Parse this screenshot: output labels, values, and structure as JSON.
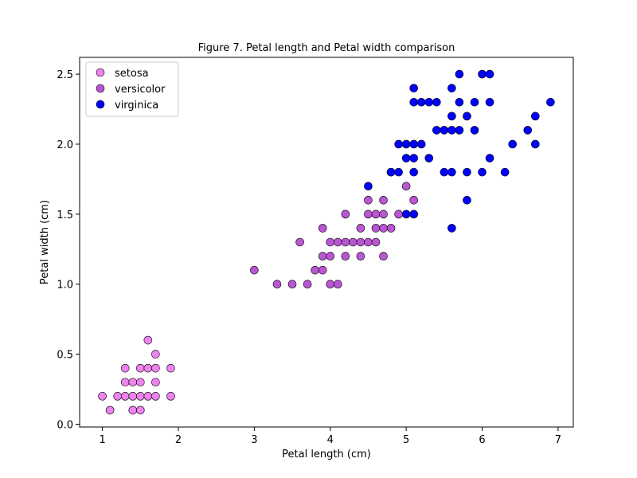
{
  "chart_data": {
    "type": "scatter",
    "title": "Figure 7. Petal length and Petal width comparison",
    "xlabel": "Petal length (cm)",
    "ylabel": "Petal width (cm)",
    "xlim": [
      0.7,
      7.2
    ],
    "ylim": [
      -0.02,
      2.62
    ],
    "xticks": [
      {
        "value": 1,
        "label": "1"
      },
      {
        "value": 2,
        "label": "2"
      },
      {
        "value": 3,
        "label": "3"
      },
      {
        "value": 4,
        "label": "4"
      },
      {
        "value": 5,
        "label": "5"
      },
      {
        "value": 6,
        "label": "6"
      },
      {
        "value": 7,
        "label": "7"
      }
    ],
    "yticks": [
      {
        "value": 0.0,
        "label": "0.0"
      },
      {
        "value": 0.5,
        "label": "0.5"
      },
      {
        "value": 1.0,
        "label": "1.0"
      },
      {
        "value": 1.5,
        "label": "1.5"
      },
      {
        "value": 2.0,
        "label": "2.0"
      },
      {
        "value": 2.5,
        "label": "2.5"
      }
    ],
    "grid": false,
    "legend_position": "top-left",
    "series": [
      {
        "name": "setosa",
        "color": "#ee82ee",
        "points": [
          [
            1.0,
            0.2
          ],
          [
            1.1,
            0.1
          ],
          [
            1.2,
            0.2
          ],
          [
            1.3,
            0.2
          ],
          [
            1.3,
            0.3
          ],
          [
            1.3,
            0.4
          ],
          [
            1.4,
            0.1
          ],
          [
            1.4,
            0.2
          ],
          [
            1.4,
            0.3
          ],
          [
            1.5,
            0.1
          ],
          [
            1.5,
            0.2
          ],
          [
            1.5,
            0.3
          ],
          [
            1.5,
            0.4
          ],
          [
            1.6,
            0.2
          ],
          [
            1.6,
            0.4
          ],
          [
            1.6,
            0.6
          ],
          [
            1.7,
            0.2
          ],
          [
            1.7,
            0.3
          ],
          [
            1.7,
            0.4
          ],
          [
            1.7,
            0.5
          ],
          [
            1.9,
            0.2
          ],
          [
            1.9,
            0.4
          ]
        ]
      },
      {
        "name": "versicolor",
        "color": "#ba55d3",
        "points": [
          [
            3.0,
            1.1
          ],
          [
            3.3,
            1.0
          ],
          [
            3.5,
            1.0
          ],
          [
            3.6,
            1.3
          ],
          [
            3.7,
            1.0
          ],
          [
            3.8,
            1.1
          ],
          [
            3.9,
            1.1
          ],
          [
            3.9,
            1.2
          ],
          [
            3.9,
            1.4
          ],
          [
            4.0,
            1.0
          ],
          [
            4.0,
            1.2
          ],
          [
            4.0,
            1.3
          ],
          [
            4.1,
            1.0
          ],
          [
            4.1,
            1.3
          ],
          [
            4.2,
            1.2
          ],
          [
            4.2,
            1.3
          ],
          [
            4.2,
            1.5
          ],
          [
            4.3,
            1.3
          ],
          [
            4.4,
            1.2
          ],
          [
            4.4,
            1.3
          ],
          [
            4.4,
            1.4
          ],
          [
            4.5,
            1.3
          ],
          [
            4.5,
            1.5
          ],
          [
            4.5,
            1.6
          ],
          [
            4.6,
            1.3
          ],
          [
            4.6,
            1.4
          ],
          [
            4.6,
            1.5
          ],
          [
            4.7,
            1.2
          ],
          [
            4.7,
            1.4
          ],
          [
            4.7,
            1.5
          ],
          [
            4.7,
            1.6
          ],
          [
            4.8,
            1.4
          ],
          [
            4.8,
            1.8
          ],
          [
            4.9,
            1.5
          ],
          [
            5.0,
            1.7
          ],
          [
            5.1,
            1.6
          ]
        ]
      },
      {
        "name": "virginica",
        "color": "#0000ff",
        "points": [
          [
            4.5,
            1.7
          ],
          [
            4.8,
            1.8
          ],
          [
            4.9,
            1.8
          ],
          [
            4.9,
            2.0
          ],
          [
            5.0,
            1.5
          ],
          [
            5.0,
            1.9
          ],
          [
            5.0,
            2.0
          ],
          [
            5.1,
            1.5
          ],
          [
            5.1,
            1.8
          ],
          [
            5.1,
            1.9
          ],
          [
            5.1,
            2.0
          ],
          [
            5.1,
            2.3
          ],
          [
            5.1,
            2.4
          ],
          [
            5.2,
            2.0
          ],
          [
            5.2,
            2.3
          ],
          [
            5.3,
            1.9
          ],
          [
            5.3,
            2.3
          ],
          [
            5.4,
            2.1
          ],
          [
            5.4,
            2.3
          ],
          [
            5.5,
            1.8
          ],
          [
            5.5,
            2.1
          ],
          [
            5.6,
            1.4
          ],
          [
            5.6,
            1.8
          ],
          [
            5.6,
            2.1
          ],
          [
            5.6,
            2.2
          ],
          [
            5.6,
            2.4
          ],
          [
            5.7,
            2.1
          ],
          [
            5.7,
            2.3
          ],
          [
            5.7,
            2.5
          ],
          [
            5.8,
            1.6
          ],
          [
            5.8,
            1.8
          ],
          [
            5.8,
            2.2
          ],
          [
            5.9,
            2.1
          ],
          [
            5.9,
            2.3
          ],
          [
            6.0,
            1.8
          ],
          [
            6.0,
            2.5
          ],
          [
            6.1,
            1.9
          ],
          [
            6.1,
            2.3
          ],
          [
            6.1,
            2.5
          ],
          [
            6.3,
            1.8
          ],
          [
            6.4,
            2.0
          ],
          [
            6.6,
            2.1
          ],
          [
            6.7,
            2.0
          ],
          [
            6.7,
            2.2
          ],
          [
            6.9,
            2.3
          ]
        ]
      }
    ]
  }
}
